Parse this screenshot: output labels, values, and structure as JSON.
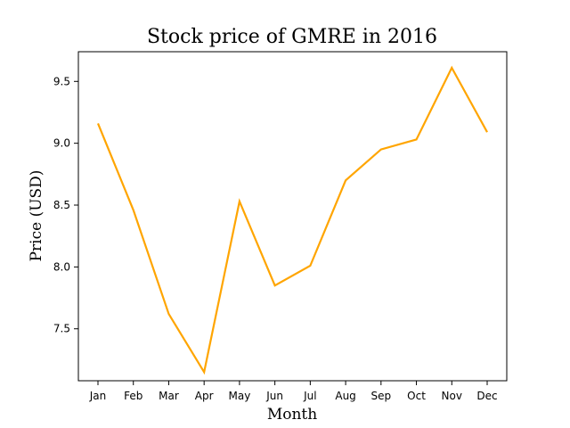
{
  "chart_data": {
    "type": "line",
    "title": "Stock price of GMRE in 2016",
    "xlabel": "Month",
    "ylabel": "Price (USD)",
    "categories": [
      "Jan",
      "Feb",
      "Mar",
      "Apr",
      "May",
      "Jun",
      "Jul",
      "Aug",
      "Sep",
      "Oct",
      "Nov",
      "Dec"
    ],
    "series": [
      {
        "values": [
          9.16,
          8.46,
          7.62,
          7.15,
          8.53,
          7.85,
          8.01,
          8.7,
          8.95,
          9.03,
          9.61,
          9.09
        ]
      }
    ],
    "ylim": [
      7.08,
      9.74
    ],
    "yticks": [
      7.5,
      8.0,
      8.5,
      9.0,
      9.5
    ],
    "ytick_labels": [
      "7.5",
      "8.0",
      "8.5",
      "9.0",
      "9.5"
    ],
    "line_color": "#ffa500",
    "grid": false,
    "legend": "none"
  }
}
